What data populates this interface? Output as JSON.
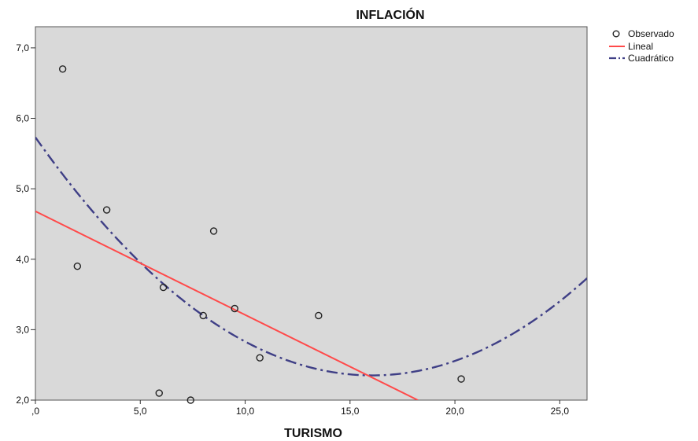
{
  "chart_data": {
    "type": "scatter",
    "title": "",
    "ylabel_top": "INFLACIÓN",
    "xlabel": "TURISMO",
    "xlim": [
      0,
      26.3
    ],
    "ylim": [
      2.0,
      7.3
    ],
    "x_ticks": [
      0,
      5,
      10,
      15,
      20,
      25
    ],
    "x_tick_labels": [
      ",0",
      "5,0",
      "10,0",
      "15,0",
      "20,0",
      "25,0"
    ],
    "y_ticks": [
      2,
      3,
      4,
      5,
      6,
      7
    ],
    "y_tick_labels": [
      "2,0",
      "3,0",
      "4,0",
      "5,0",
      "6,0",
      "7,0"
    ],
    "grid": false,
    "legend_position": "top-right",
    "colors": {
      "plot_background": "#d9d9d9",
      "observed": "#222222",
      "linear": "#ff4a4a",
      "quadratic": "#3f3f86"
    },
    "series": [
      {
        "name": "Observado",
        "kind": "points",
        "points": [
          {
            "x": 1.3,
            "y": 6.7
          },
          {
            "x": 2.0,
            "y": 3.9
          },
          {
            "x": 3.4,
            "y": 4.7
          },
          {
            "x": 5.9,
            "y": 2.1
          },
          {
            "x": 6.1,
            "y": 3.6
          },
          {
            "x": 7.4,
            "y": 2.0
          },
          {
            "x": 8.0,
            "y": 3.2
          },
          {
            "x": 8.5,
            "y": 4.4
          },
          {
            "x": 9.5,
            "y": 3.3
          },
          {
            "x": 10.7,
            "y": 2.6
          },
          {
            "x": 13.5,
            "y": 3.2
          },
          {
            "x": 20.3,
            "y": 2.3
          }
        ]
      },
      {
        "name": "Lineal",
        "kind": "line",
        "intercept": 4.68,
        "slope": -0.147
      },
      {
        "name": "Cuadrático",
        "kind": "curve",
        "a": 0.01312,
        "b": -0.4211,
        "c": 5.73
      }
    ]
  }
}
